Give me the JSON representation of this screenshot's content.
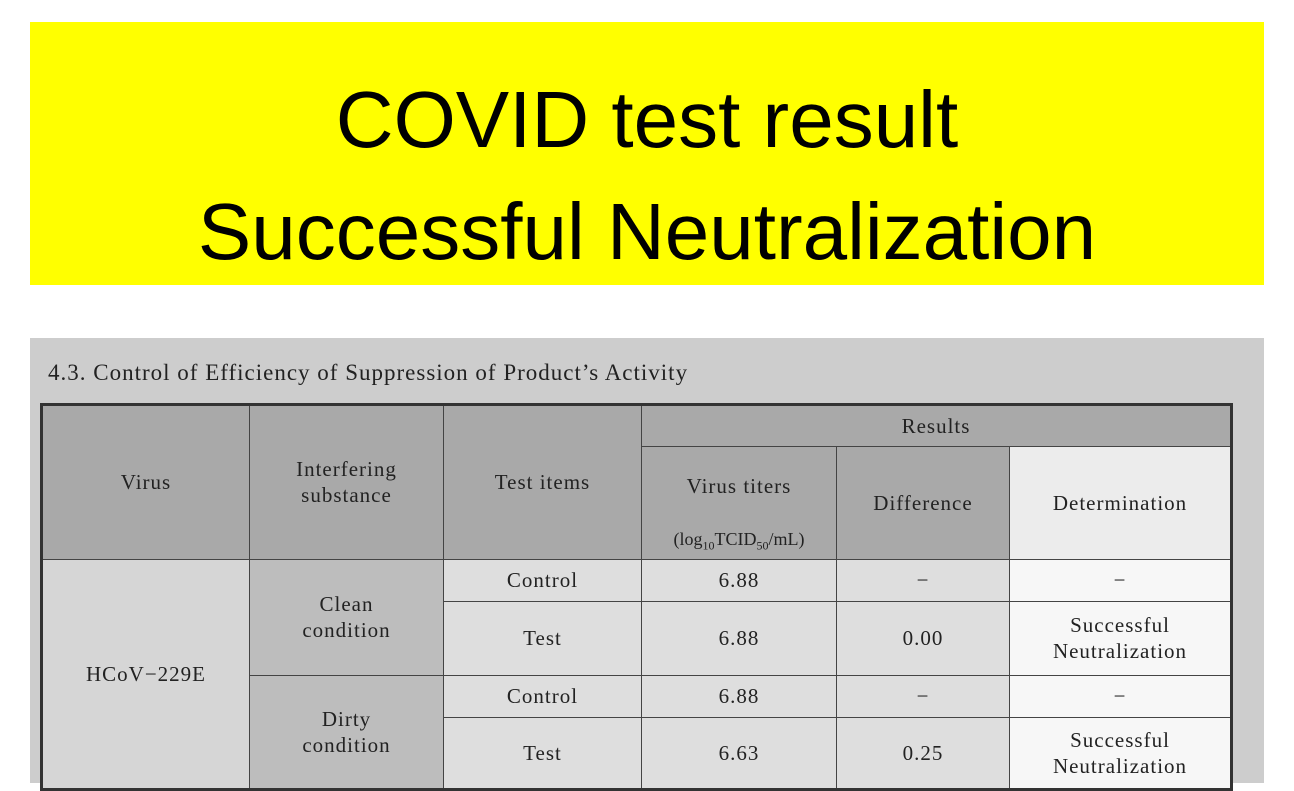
{
  "banner": {
    "line1": "COVID test result",
    "line2": "Successful Neutralization"
  },
  "section": {
    "caption": "4.3. Control of Efficiency of Suppression of Product’s Activity"
  },
  "table": {
    "headers": {
      "virus": "Virus",
      "interfering": "Interfering\nsubstance",
      "test_items": "Test items",
      "results": "Results",
      "titers": [
        "Virus titers",
        "(log",
        "10",
        "TCID",
        "50",
        "/mL)"
      ],
      "difference": "Difference",
      "determination": "Determination"
    },
    "virus": "HCoV−229E",
    "groups": [
      {
        "condition": "Clean\ncondition",
        "rows": [
          {
            "item": "Control",
            "titer": "6.88",
            "difference": "−",
            "determination": "−"
          },
          {
            "item": "Test",
            "titer": "6.88",
            "difference": "0.00",
            "determination": "Successful\nNeutralization"
          }
        ]
      },
      {
        "condition": "Dirty\ncondition",
        "rows": [
          {
            "item": "Control",
            "titer": "6.88",
            "difference": "−",
            "determination": "−"
          },
          {
            "item": "Test",
            "titer": "6.63",
            "difference": "0.25",
            "determination": "Successful\nNeutralization"
          }
        ]
      }
    ]
  }
}
